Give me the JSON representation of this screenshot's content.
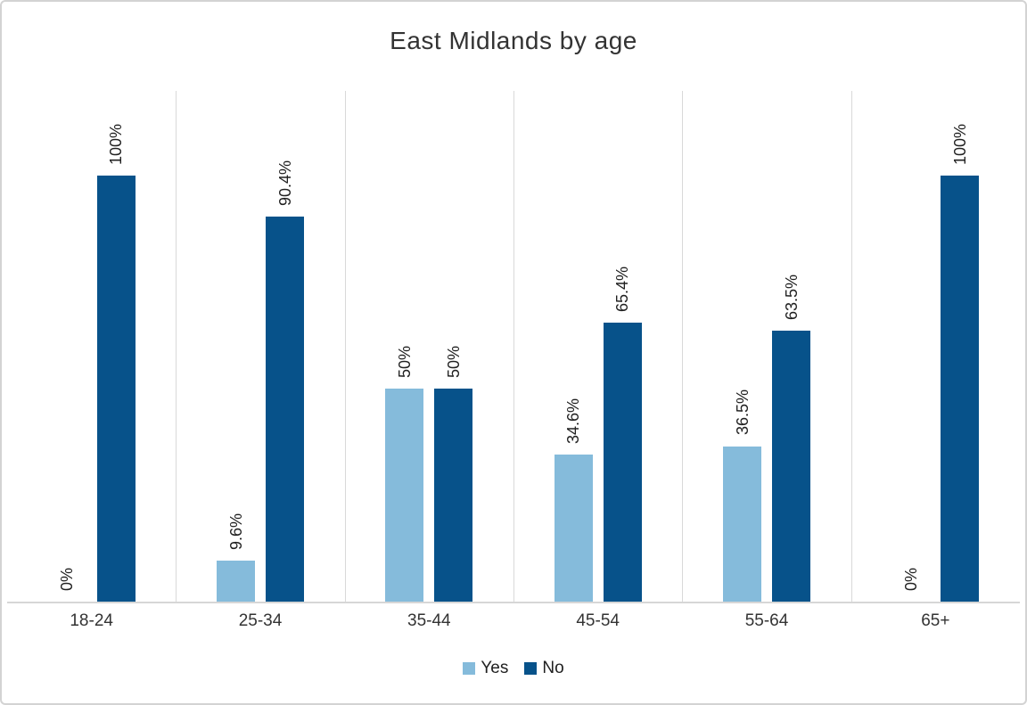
{
  "chart_data": {
    "type": "bar",
    "title": "East Midlands by age",
    "categories": [
      "18-24",
      "25-34",
      "35-44",
      "45-54",
      "55-64",
      "65+"
    ],
    "series": [
      {
        "name": "Yes",
        "color": "#85BBDB",
        "values": [
          0,
          9.6,
          50,
          34.6,
          36.5,
          0
        ],
        "labels": [
          "0%",
          "9.6%",
          "50%",
          "34.6%",
          "36.5%",
          "0%"
        ]
      },
      {
        "name": "No",
        "color": "#07528A",
        "values": [
          100,
          90.4,
          50,
          65.4,
          63.5,
          100
        ],
        "labels": [
          "100%",
          "90.4%",
          "50%",
          "65.4%",
          "63.5%",
          "100%"
        ]
      }
    ],
    "ylim": [
      0,
      100
    ],
    "y_axis_visible": false,
    "data_labels": "rotated-90-percent",
    "legend_position": "bottom-center",
    "gridlines": "vertical-between-categories",
    "gridline_color": "#D9D9D9",
    "axis_line_color": "#D6D6D6",
    "border_color": "#D3D3D3",
    "text_color": "#333333"
  }
}
